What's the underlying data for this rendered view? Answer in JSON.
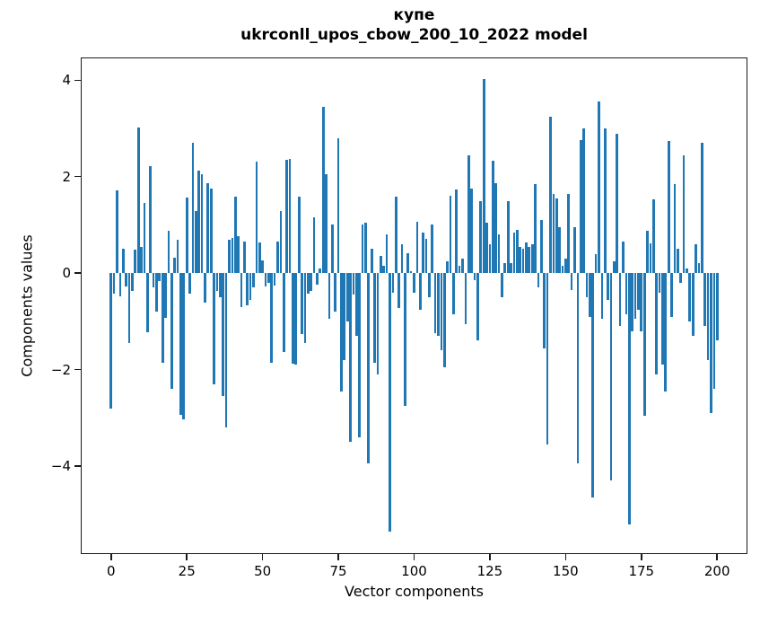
{
  "page": {
    "title_line1": "купе",
    "title_line2": "ukrconll_upos_cbow_200_10_2022 model",
    "xlabel": "Vector components",
    "ylabel": "Components values"
  },
  "chart_data": {
    "type": "bar",
    "title": "купе\nukrconll_upos_cbow_200_10_2022 model",
    "xlabel": "Vector components",
    "ylabel": "Components values",
    "bar_color": "#1f77b4",
    "axis_color": "#1a1a1a",
    "grid": false,
    "legend": false,
    "xlim": [
      -10,
      210
    ],
    "ylim": [
      -5.82,
      4.47
    ],
    "x_ticks": [
      0,
      25,
      50,
      75,
      100,
      125,
      150,
      175,
      200
    ],
    "x_tick_labels": [
      "0",
      "25",
      "50",
      "75",
      "100",
      "125",
      "150",
      "175",
      "200"
    ],
    "y_ticks": [
      -4,
      -2,
      0,
      2,
      4
    ],
    "y_tick_labels": [
      "−4",
      "−2",
      "0",
      "2",
      "4"
    ],
    "x_start": 0,
    "values": [
      -2.8,
      -0.42,
      1.72,
      -0.48,
      0.5,
      -0.27,
      -1.45,
      -0.36,
      0.48,
      3.02,
      0.55,
      1.45,
      -1.23,
      2.21,
      -0.3,
      -0.8,
      -0.17,
      -1.85,
      -0.92,
      0.88,
      -2.4,
      0.32,
      0.69,
      -2.93,
      -3.02,
      1.56,
      -0.42,
      2.71,
      1.28,
      2.12,
      2.06,
      -0.61,
      1.87,
      1.75,
      -2.3,
      -0.36,
      -0.5,
      -2.55,
      -3.2,
      0.7,
      0.73,
      1.59,
      0.76,
      -0.7,
      0.66,
      -0.66,
      -0.55,
      -0.29,
      2.31,
      0.63,
      0.27,
      -0.27,
      -0.2,
      -1.85,
      -0.25,
      0.66,
      1.28,
      -1.63,
      2.35,
      2.37,
      -1.88,
      -1.9,
      1.58,
      -1.26,
      -1.45,
      -0.42,
      -0.36,
      1.16,
      -0.24,
      0.1,
      3.44,
      2.05,
      -0.95,
      1.0,
      -0.8,
      2.8,
      -2.45,
      -1.8,
      -1.0,
      -3.5,
      -0.45,
      -1.3,
      -3.4,
      1.0,
      1.05,
      -3.95,
      0.5,
      -1.85,
      -2.1,
      0.35,
      0.15,
      0.8,
      -5.36,
      -0.4,
      1.58,
      -0.73,
      0.6,
      -2.75,
      0.41,
      0.05,
      -0.4,
      1.06,
      -0.75,
      0.85,
      0.71,
      -0.5,
      1.0,
      -1.25,
      -1.3,
      -1.6,
      -1.95,
      0.25,
      1.6,
      -0.85,
      1.74,
      0.15,
      0.3,
      -1.05,
      2.45,
      1.75,
      -0.15,
      -1.4,
      1.5,
      4.02,
      1.05,
      0.6,
      2.33,
      1.87,
      0.8,
      -0.5,
      0.2,
      1.5,
      0.2,
      0.85,
      0.9,
      0.55,
      0.5,
      0.63,
      0.55,
      0.6,
      1.85,
      -0.3,
      1.1,
      -1.55,
      -3.55,
      3.25,
      1.65,
      1.55,
      0.95,
      0.15,
      0.3,
      1.65,
      -0.35,
      0.95,
      -3.95,
      2.75,
      3.0,
      -0.5,
      -0.9,
      -4.65,
      0.4,
      3.55,
      -0.95,
      3.0,
      -0.55,
      -4.3,
      0.25,
      2.88,
      -1.1,
      0.65,
      -0.85,
      -5.2,
      -1.2,
      -0.95,
      -0.75,
      -1.2,
      -2.95,
      0.88,
      0.62,
      1.53,
      -2.1,
      -0.4,
      -1.9,
      -2.45,
      2.74,
      -0.9,
      1.84,
      0.5,
      -0.2,
      2.44,
      0.1,
      -1.0,
      -1.3,
      0.6,
      0.2,
      2.7,
      -1.1,
      -1.8,
      -2.9,
      -2.4,
      -1.4
    ]
  }
}
